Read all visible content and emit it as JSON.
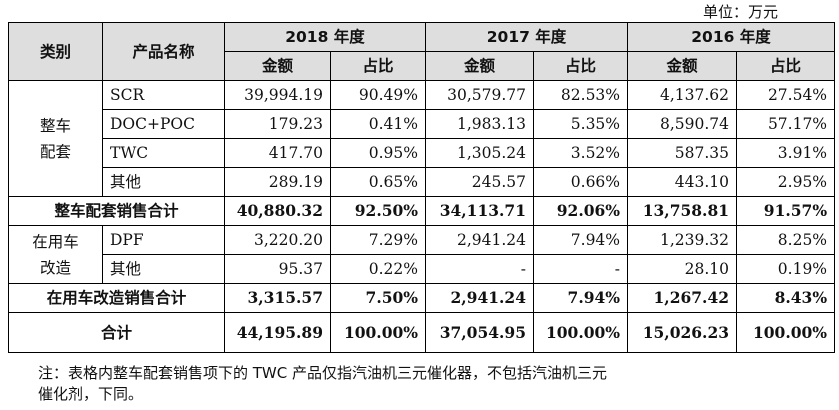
{
  "unit_label": "单位：万元",
  "headers": {
    "category": "类别",
    "product": "产品名称",
    "years": [
      "2018 年度",
      "2017 年度",
      "2016 年度"
    ],
    "amount": "金额",
    "ratio": "占比"
  },
  "groups": [
    {
      "category": "整车\n配套",
      "rows": [
        {
          "product": "SCR",
          "values": [
            "39,994.19",
            "90.49%",
            "30,579.77",
            "82.53%",
            "4,137.62",
            "27.54%"
          ]
        },
        {
          "product": "DOC+POC",
          "values": [
            "179.23",
            "0.41%",
            "1,983.13",
            "5.35%",
            "8,590.74",
            "57.17%"
          ]
        },
        {
          "product": "TWC",
          "values": [
            "417.70",
            "0.95%",
            "1,305.24",
            "3.52%",
            "587.35",
            "3.91%"
          ]
        },
        {
          "product": "其他",
          "values": [
            "289.19",
            "0.65%",
            "245.57",
            "0.66%",
            "443.10",
            "2.95%"
          ]
        }
      ],
      "subtotal": {
        "label": "整车配套销售合计",
        "values": [
          "40,880.32",
          "92.50%",
          "34,113.71",
          "92.06%",
          "13,758.81",
          "91.57%"
        ]
      }
    },
    {
      "category": "在用车\n改造",
      "rows": [
        {
          "product": "DPF",
          "values": [
            "3,220.20",
            "7.29%",
            "2,941.24",
            "7.94%",
            "1,239.32",
            "8.25%"
          ]
        },
        {
          "product": "其他",
          "values": [
            "95.37",
            "0.22%",
            "-",
            "-",
            "28.10",
            "0.19%"
          ]
        }
      ],
      "subtotal": {
        "label": "在用车改造销售合计",
        "values": [
          "3,315.57",
          "7.50%",
          "2,941.24",
          "7.94%",
          "1,267.42",
          "8.43%"
        ]
      }
    }
  ],
  "total": {
    "label": "合计",
    "values": [
      "44,195.89",
      "100.00%",
      "37,054.95",
      "100.00%",
      "15,026.23",
      "100.00%"
    ]
  },
  "note_line1": "注：表格内整车配套销售项下的 TWC 产品仅指汽油机三元催化器，不包括汽油机三元",
  "note_line2": "催化剂，下同。"
}
